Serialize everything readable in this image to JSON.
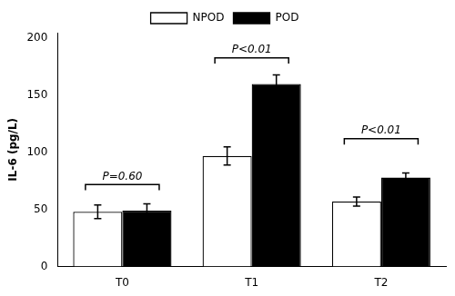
{
  "chart_data": {
    "type": "bar",
    "categories": [
      "T0",
      "T1",
      "T2"
    ],
    "series": [
      {
        "name": "NPOD",
        "color": "#ffffff",
        "values": [
          48,
          97,
          57
        ],
        "errors": [
          6,
          8,
          4
        ]
      },
      {
        "name": "POD",
        "color": "#000000",
        "values": [
          49,
          160,
          78
        ],
        "errors": [
          6,
          8,
          4
        ]
      }
    ],
    "ylabel": "IL-6 (pg/L)",
    "ylim": [
      0,
      205
    ],
    "yticks": [
      0,
      50,
      100,
      150,
      200
    ],
    "grid": false,
    "legend": "top",
    "annotations": [
      {
        "category": "T0",
        "text": "P=0.60",
        "y": 74,
        "bracket_y": 72,
        "tick_down": 5
      },
      {
        "category": "T1",
        "text": "P<0.01",
        "y": 185,
        "bracket_y": 183,
        "tick_down": 5
      },
      {
        "category": "T2",
        "text": "P<0.01",
        "y": 114,
        "bracket_y": 112,
        "tick_down": 5
      }
    ]
  }
}
